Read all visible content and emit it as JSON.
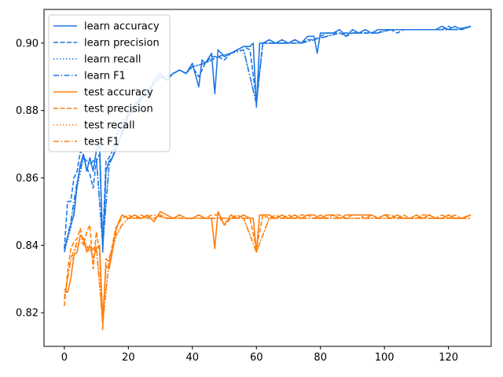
{
  "chart_data": {
    "type": "line",
    "title": "",
    "xlabel": "",
    "ylabel": "",
    "xlim": [
      -6.35,
      133.35
    ],
    "ylim": [
      0.81,
      0.91
    ],
    "x_ticks": [
      0,
      20,
      40,
      60,
      80,
      100,
      120
    ],
    "y_ticks": [
      0.82,
      0.84,
      0.86,
      0.88,
      0.9
    ],
    "grid": false,
    "legend_position": "top-left",
    "colors": {
      "learn": "#1f77e4",
      "test": "#ff7f0e"
    },
    "series": [
      {
        "name": "learn accuracy",
        "group": "learn",
        "style": "solid",
        "x": [
          0,
          2,
          3,
          4,
          5,
          6,
          7,
          8,
          9,
          10,
          11,
          12,
          13,
          14,
          15,
          16,
          18,
          20,
          22,
          24,
          25,
          26,
          28,
          30,
          32,
          34,
          36,
          38,
          40,
          42,
          43,
          44,
          46,
          47,
          48,
          50,
          52,
          54,
          56,
          58,
          59,
          60,
          61,
          62,
          64,
          66,
          68,
          70,
          72,
          74,
          76,
          78,
          79,
          80,
          82,
          84,
          86,
          88,
          90,
          92,
          94,
          96,
          98,
          100,
          102,
          104,
          106,
          108,
          110,
          112,
          114,
          116,
          118,
          120,
          122,
          124,
          127
        ],
        "y": [
          0.839,
          0.846,
          0.849,
          0.858,
          0.864,
          0.867,
          0.862,
          0.866,
          0.862,
          0.868,
          0.871,
          0.838,
          0.862,
          0.865,
          0.866,
          0.869,
          0.873,
          0.879,
          0.881,
          0.883,
          0.886,
          0.884,
          0.889,
          0.891,
          0.889,
          0.891,
          0.892,
          0.891,
          0.894,
          0.887,
          0.895,
          0.894,
          0.897,
          0.885,
          0.898,
          0.896,
          0.897,
          0.898,
          0.899,
          0.899,
          0.9,
          0.881,
          0.9,
          0.9,
          0.901,
          0.9,
          0.901,
          0.9,
          0.901,
          0.9,
          0.902,
          0.902,
          0.897,
          0.903,
          0.903,
          0.903,
          0.904,
          0.902,
          0.904,
          0.903,
          0.904,
          0.903,
          0.904,
          0.904,
          0.904,
          0.904,
          0.904,
          0.904,
          0.904,
          0.904,
          0.904,
          0.904,
          0.905,
          0.904,
          0.905,
          0.904,
          0.905
        ]
      },
      {
        "name": "learn precision",
        "group": "learn",
        "style": "dashed",
        "x": [
          0,
          1,
          2,
          3,
          4,
          5,
          6,
          7,
          8,
          9,
          10,
          11,
          12,
          13,
          14,
          15,
          16,
          18,
          20,
          22,
          24,
          26,
          28,
          30,
          32,
          34,
          36,
          38,
          40,
          42,
          44,
          46,
          48,
          50,
          52,
          54,
          56,
          58,
          60,
          62,
          64,
          66,
          68,
          70,
          72,
          74,
          76,
          78,
          80,
          82,
          84,
          86,
          88,
          90,
          92,
          94,
          96,
          98,
          100,
          102,
          104,
          106,
          108,
          110,
          112,
          114,
          116,
          118,
          120,
          122,
          124,
          127
        ],
        "y": [
          0.839,
          0.853,
          0.853,
          0.86,
          0.862,
          0.868,
          0.866,
          0.863,
          0.861,
          0.857,
          0.865,
          0.867,
          0.841,
          0.865,
          0.866,
          0.868,
          0.872,
          0.876,
          0.879,
          0.882,
          0.884,
          0.885,
          0.888,
          0.89,
          0.89,
          0.891,
          0.892,
          0.891,
          0.893,
          0.89,
          0.894,
          0.896,
          0.896,
          0.895,
          0.897,
          0.898,
          0.899,
          0.898,
          0.883,
          0.9,
          0.9,
          0.9,
          0.9,
          0.9,
          0.901,
          0.9,
          0.901,
          0.901,
          0.902,
          0.903,
          0.903,
          0.903,
          0.902,
          0.903,
          0.903,
          0.903,
          0.903,
          0.903,
          0.904,
          0.904,
          0.903,
          0.904,
          0.904,
          0.904,
          0.904,
          0.904,
          0.904,
          0.904,
          0.905,
          0.904,
          0.904,
          0.905
        ]
      },
      {
        "name": "learn recall",
        "group": "learn",
        "style": "dotted",
        "x": [
          0,
          2,
          4,
          6,
          8,
          10,
          12,
          14,
          16,
          18,
          20,
          22,
          24,
          26,
          28,
          30,
          32,
          34,
          36,
          38,
          40,
          44,
          48,
          52,
          56,
          60,
          62,
          66,
          70,
          74,
          78,
          82,
          86,
          90,
          94,
          98,
          102,
          106,
          110,
          114,
          118,
          122,
          127
        ],
        "y": [
          0.838,
          0.845,
          0.857,
          0.866,
          0.864,
          0.866,
          0.84,
          0.864,
          0.868,
          0.874,
          0.878,
          0.881,
          0.884,
          0.886,
          0.888,
          0.89,
          0.889,
          0.891,
          0.892,
          0.891,
          0.893,
          0.894,
          0.896,
          0.897,
          0.898,
          0.882,
          0.9,
          0.9,
          0.9,
          0.9,
          0.901,
          0.902,
          0.903,
          0.903,
          0.903,
          0.903,
          0.904,
          0.904,
          0.904,
          0.904,
          0.904,
          0.904,
          0.905
        ]
      },
      {
        "name": "learn F1",
        "group": "learn",
        "style": "dashdot",
        "x": [
          0,
          2,
          4,
          6,
          8,
          10,
          12,
          14,
          16,
          18,
          20,
          22,
          24,
          26,
          28,
          30,
          32,
          34,
          36,
          38,
          40,
          44,
          48,
          52,
          56,
          60,
          62,
          66,
          70,
          74,
          78,
          82,
          86,
          90,
          94,
          98,
          102,
          106,
          110,
          114,
          118,
          122,
          127
        ],
        "y": [
          0.838,
          0.847,
          0.859,
          0.866,
          0.864,
          0.866,
          0.84,
          0.864,
          0.868,
          0.874,
          0.878,
          0.881,
          0.884,
          0.886,
          0.888,
          0.89,
          0.889,
          0.891,
          0.892,
          0.891,
          0.893,
          0.894,
          0.896,
          0.897,
          0.898,
          0.882,
          0.9,
          0.9,
          0.9,
          0.9,
          0.901,
          0.902,
          0.903,
          0.903,
          0.903,
          0.903,
          0.904,
          0.904,
          0.904,
          0.904,
          0.904,
          0.904,
          0.905
        ]
      },
      {
        "name": "test accuracy",
        "group": "test",
        "style": "solid",
        "x": [
          0,
          1,
          2,
          3,
          4,
          5,
          6,
          7,
          8,
          9,
          10,
          11,
          12,
          13,
          14,
          15,
          16,
          17,
          18,
          20,
          22,
          24,
          26,
          28,
          30,
          32,
          34,
          36,
          38,
          40,
          42,
          44,
          46,
          47,
          48,
          50,
          52,
          54,
          56,
          58,
          59,
          60,
          61,
          62,
          64,
          66,
          68,
          70,
          72,
          74,
          76,
          78,
          80,
          82,
          84,
          86,
          88,
          90,
          92,
          94,
          96,
          98,
          100,
          102,
          104,
          106,
          108,
          110,
          112,
          114,
          116,
          118,
          120,
          122,
          124,
          127
        ],
        "y": [
          0.827,
          0.826,
          0.83,
          0.837,
          0.838,
          0.843,
          0.842,
          0.838,
          0.84,
          0.836,
          0.839,
          0.84,
          0.818,
          0.834,
          0.833,
          0.838,
          0.844,
          0.847,
          0.849,
          0.848,
          0.849,
          0.848,
          0.849,
          0.847,
          0.85,
          0.849,
          0.848,
          0.849,
          0.848,
          0.848,
          0.849,
          0.848,
          0.848,
          0.839,
          0.85,
          0.846,
          0.849,
          0.848,
          0.849,
          0.848,
          0.848,
          0.838,
          0.849,
          0.849,
          0.849,
          0.848,
          0.849,
          0.848,
          0.849,
          0.848,
          0.849,
          0.849,
          0.848,
          0.849,
          0.849,
          0.848,
          0.849,
          0.849,
          0.849,
          0.849,
          0.849,
          0.848,
          0.849,
          0.848,
          0.849,
          0.848,
          0.848,
          0.849,
          0.848,
          0.849,
          0.848,
          0.848,
          0.849,
          0.848,
          0.848,
          0.849
        ]
      },
      {
        "name": "test precision",
        "group": "test",
        "style": "dashed",
        "x": [
          0,
          1,
          2,
          3,
          4,
          5,
          6,
          7,
          8,
          9,
          10,
          11,
          12,
          13,
          14,
          15,
          16,
          18,
          20,
          22,
          24,
          26,
          28,
          30,
          32,
          34,
          36,
          38,
          40,
          42,
          44,
          46,
          48,
          50,
          52,
          54,
          56,
          58,
          60,
          62,
          64,
          66,
          68,
          70,
          72,
          74,
          76,
          78,
          80,
          82,
          84,
          86,
          88,
          90,
          92,
          94,
          96,
          98,
          100,
          102,
          104,
          106,
          108,
          110,
          112,
          114,
          116,
          118,
          120,
          122,
          124,
          127
        ],
        "y": [
          0.822,
          0.832,
          0.839,
          0.841,
          0.842,
          0.845,
          0.84,
          0.844,
          0.846,
          0.833,
          0.844,
          0.838,
          0.815,
          0.836,
          0.835,
          0.84,
          0.845,
          0.848,
          0.849,
          0.848,
          0.849,
          0.848,
          0.848,
          0.849,
          0.848,
          0.848,
          0.849,
          0.848,
          0.848,
          0.849,
          0.848,
          0.849,
          0.849,
          0.846,
          0.848,
          0.849,
          0.848,
          0.848,
          0.839,
          0.849,
          0.848,
          0.849,
          0.848,
          0.849,
          0.848,
          0.849,
          0.849,
          0.848,
          0.849,
          0.848,
          0.849,
          0.849,
          0.848,
          0.849,
          0.849,
          0.848,
          0.849,
          0.848,
          0.849,
          0.849,
          0.848,
          0.849,
          0.848,
          0.848,
          0.849,
          0.849,
          0.848,
          0.849,
          0.848,
          0.849,
          0.848,
          0.849
        ]
      },
      {
        "name": "test recall",
        "group": "test",
        "style": "dotted",
        "x": [
          0,
          2,
          4,
          6,
          8,
          10,
          12,
          14,
          16,
          18,
          20,
          24,
          28,
          32,
          36,
          40,
          44,
          48,
          52,
          56,
          60,
          64,
          68,
          72,
          76,
          80,
          84,
          88,
          92,
          96,
          100,
          104,
          108,
          112,
          116,
          120,
          124,
          127
        ],
        "y": [
          0.825,
          0.835,
          0.84,
          0.841,
          0.838,
          0.839,
          0.817,
          0.835,
          0.842,
          0.846,
          0.848,
          0.848,
          0.849,
          0.848,
          0.848,
          0.848,
          0.848,
          0.848,
          0.848,
          0.848,
          0.838,
          0.848,
          0.848,
          0.848,
          0.848,
          0.848,
          0.848,
          0.848,
          0.848,
          0.848,
          0.848,
          0.848,
          0.848,
          0.848,
          0.848,
          0.848,
          0.848,
          0.848
        ]
      },
      {
        "name": "test F1",
        "group": "test",
        "style": "dashdot",
        "x": [
          0,
          2,
          4,
          6,
          8,
          10,
          12,
          14,
          16,
          18,
          20,
          24,
          28,
          32,
          36,
          40,
          44,
          48,
          52,
          56,
          60,
          64,
          68,
          72,
          76,
          80,
          84,
          88,
          92,
          96,
          100,
          104,
          108,
          112,
          116,
          120,
          124,
          127
        ],
        "y": [
          0.824,
          0.836,
          0.841,
          0.842,
          0.838,
          0.84,
          0.817,
          0.836,
          0.843,
          0.846,
          0.848,
          0.848,
          0.849,
          0.848,
          0.848,
          0.848,
          0.848,
          0.848,
          0.848,
          0.848,
          0.838,
          0.848,
          0.848,
          0.848,
          0.848,
          0.848,
          0.848,
          0.848,
          0.848,
          0.848,
          0.848,
          0.848,
          0.848,
          0.848,
          0.848,
          0.848,
          0.848,
          0.848
        ]
      }
    ]
  }
}
